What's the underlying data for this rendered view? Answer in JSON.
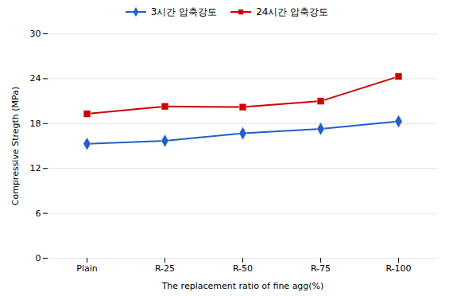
{
  "chart_data": {
    "type": "line",
    "categories": [
      "Plain",
      "R-25",
      "R-50",
      "R-75",
      "R-100"
    ],
    "series": [
      {
        "name": "3시간 압축강도",
        "color": "#2060C8",
        "marker": "diamond",
        "values": [
          15.3,
          15.7,
          16.7,
          17.3,
          18.3
        ]
      },
      {
        "name": "24시간 압축강도",
        "color": "#CC0000",
        "marker": "square",
        "values": [
          19.3,
          20.3,
          20.2,
          21.0,
          24.3
        ]
      }
    ],
    "xlabel": "The replacement ratio of fine agg(%)",
    "ylabel": "Compressive Stregth (MPa)",
    "ylim": [
      0,
      30
    ],
    "yticks": [
      0,
      6,
      12,
      18,
      24,
      30
    ],
    "grid": true,
    "legend": "upper center"
  }
}
